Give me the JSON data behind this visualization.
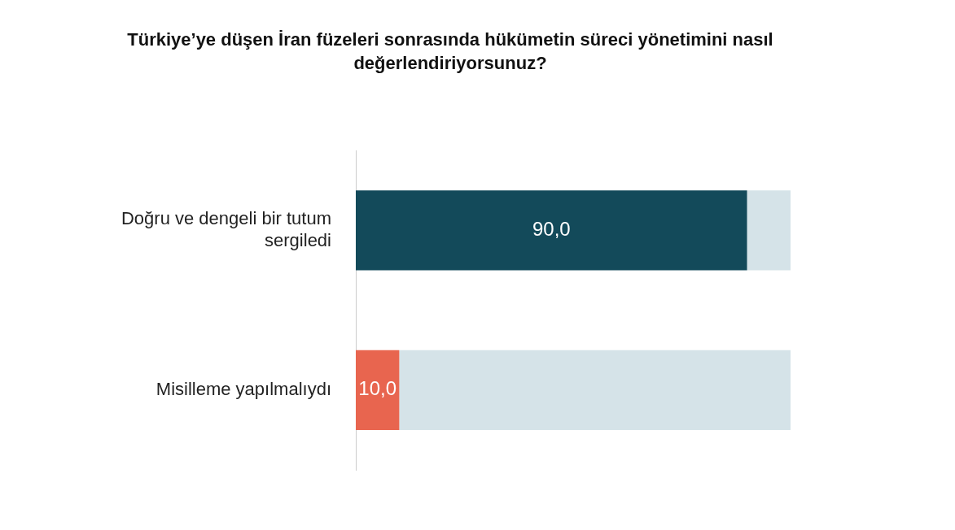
{
  "chart_data": {
    "type": "bar",
    "title": "Türkiye’ye düşen İran füzeleri sonrasında hükümetin süreci yönetimini nasıl değerlendiriyorsunuz?",
    "orientation": "horizontal",
    "stacked": true,
    "categories": [
      "Doğru ve dengeli bir tutum sergiledi",
      "Misilleme yapılmalıydı"
    ],
    "series": [
      {
        "colors": [
          "#134a5a",
          "#e8654f"
        ],
        "values": [
          90,
          10
        ],
        "value_labels": [
          "90,0",
          "10,0"
        ]
      },
      {
        "color": "#d5e3e8",
        "values": [
          10,
          90
        ]
      }
    ],
    "xlim": [
      0,
      100
    ],
    "tick_labels": "y",
    "grid": false,
    "legend": false
  }
}
